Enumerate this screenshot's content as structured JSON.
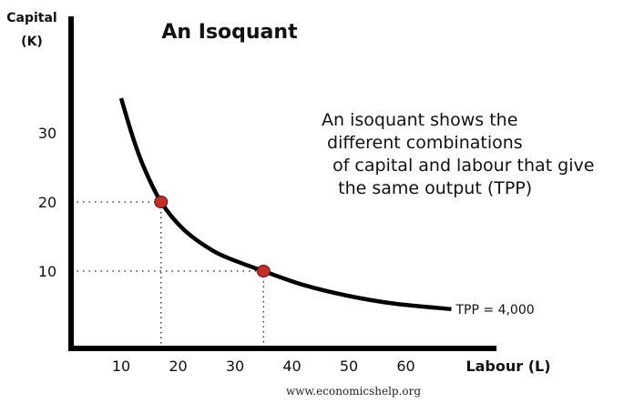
{
  "chart_data": {
    "type": "line",
    "title": "An Isoquant",
    "xlabel": "Labour (L)",
    "ylabel": [
      "Capital",
      "(K)"
    ],
    "x_ticks": [
      10,
      20,
      30,
      40,
      50,
      60
    ],
    "y_ticks": [
      10,
      20,
      30
    ],
    "grid": false,
    "series": [
      {
        "name": "TPP = 4,000",
        "color": "#000000",
        "points": [
          [
            10,
            35
          ],
          [
            12,
            29.5
          ],
          [
            14,
            25
          ],
          [
            17,
            20
          ],
          [
            21,
            16
          ],
          [
            26,
            13
          ],
          [
            30,
            11.5
          ],
          [
            35,
            10
          ],
          [
            42,
            8
          ],
          [
            50,
            6.4
          ],
          [
            58,
            5.3
          ],
          [
            68,
            4.5
          ]
        ]
      }
    ],
    "highlighted_points": [
      [
        17,
        20
      ],
      [
        35,
        10
      ]
    ],
    "highlight_color": "#c0302a",
    "annotation": [
      "An isoquant shows the",
      " different combinations",
      "  of capital and labour that give",
      "   the same output (TPP)"
    ],
    "source": "www.economicshelp.org"
  }
}
